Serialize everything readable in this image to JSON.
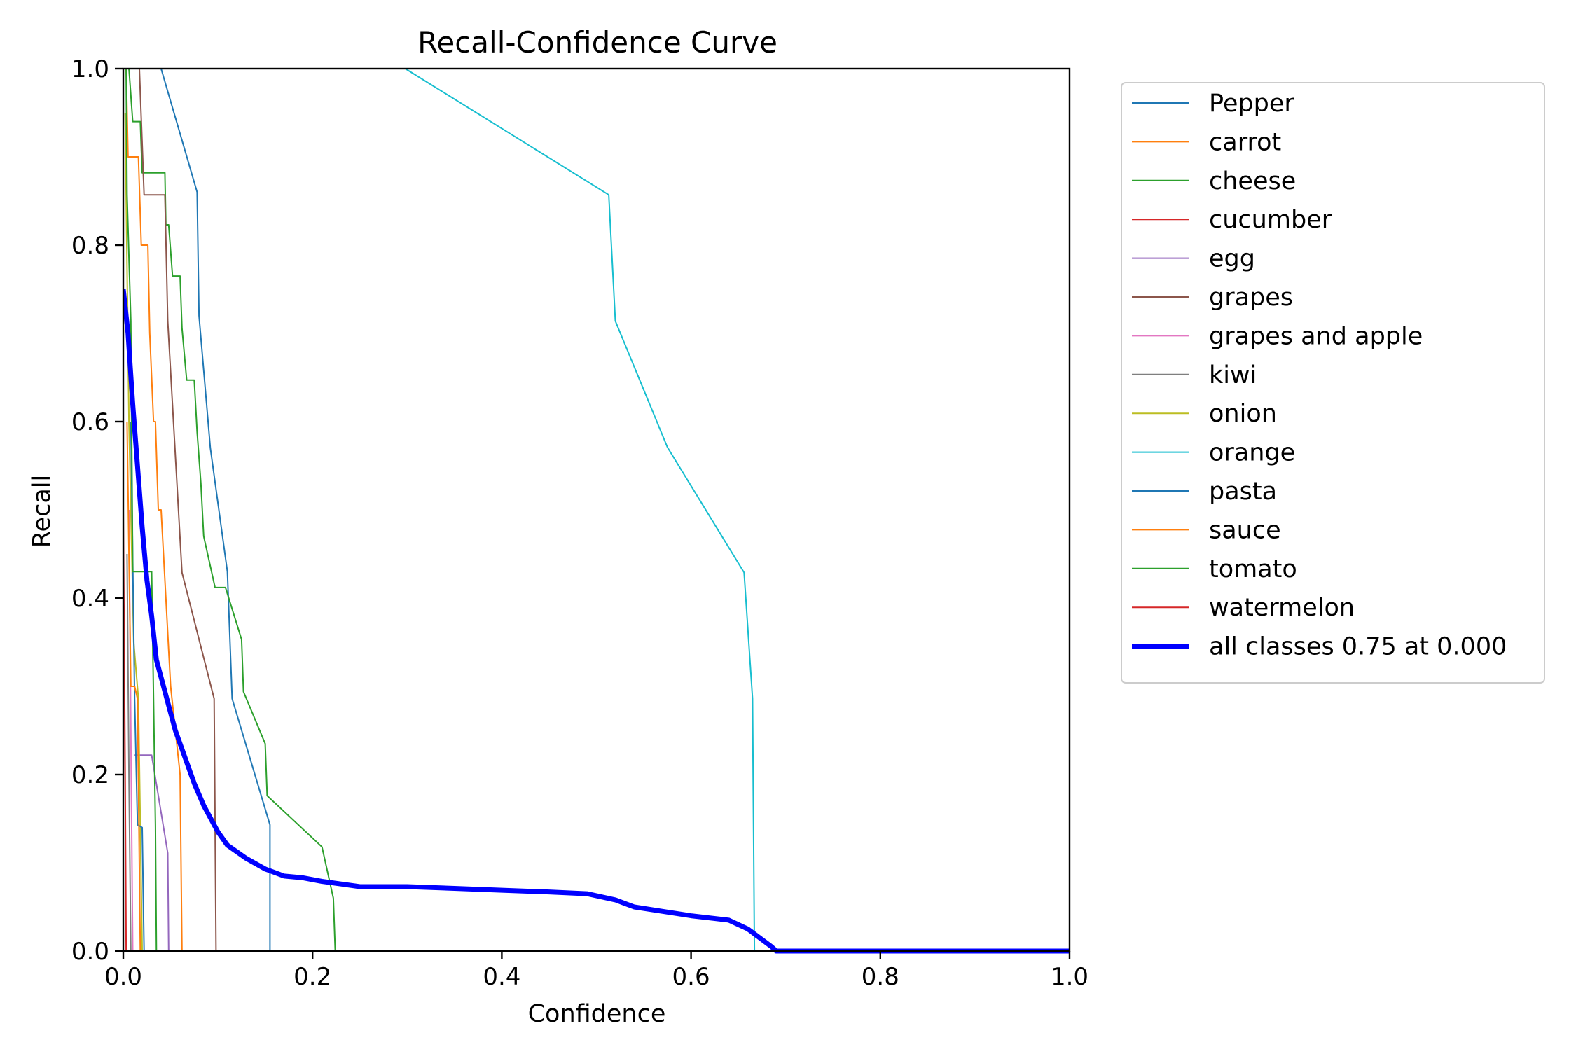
{
  "chart_data": {
    "type": "line",
    "title": "Recall-Confidence Curve",
    "xlabel": "Confidence",
    "ylabel": "Recall",
    "xlim": [
      0,
      1
    ],
    "ylim": [
      0,
      1
    ],
    "xticks": [
      "0.0",
      "0.2",
      "0.4",
      "0.6",
      "0.8",
      "1.0"
    ],
    "yticks": [
      "0.0",
      "0.2",
      "0.4",
      "0.6",
      "0.8",
      "1.0"
    ],
    "grid": false,
    "legend_position": "outside-right-top",
    "series": [
      {
        "name": "Pepper",
        "color": "#1f77b4",
        "width": 2,
        "points": [
          [
            0.04,
            1.0
          ],
          [
            0.078,
            0.86
          ],
          [
            0.08,
            0.72
          ],
          [
            0.092,
            0.57
          ],
          [
            0.11,
            0.43
          ],
          [
            0.115,
            0.286
          ],
          [
            0.155,
            0.143
          ],
          [
            0.155,
            0.0
          ]
        ]
      },
      {
        "name": "carrot",
        "color": "#ff7f0e",
        "width": 2,
        "points": [
          [
            0.003,
            1.0
          ],
          [
            0.005,
            0.9
          ],
          [
            0.016,
            0.9
          ],
          [
            0.019,
            0.8
          ],
          [
            0.026,
            0.8
          ],
          [
            0.028,
            0.7
          ],
          [
            0.032,
            0.6
          ],
          [
            0.034,
            0.6
          ],
          [
            0.037,
            0.5
          ],
          [
            0.04,
            0.5
          ],
          [
            0.045,
            0.4
          ],
          [
            0.05,
            0.3
          ],
          [
            0.06,
            0.2
          ],
          [
            0.062,
            0.0
          ]
        ]
      },
      {
        "name": "cheese",
        "color": "#2ca02c",
        "width": 2,
        "points": [
          [
            0.006,
            1.0
          ],
          [
            0.01,
            0.94
          ],
          [
            0.018,
            0.94
          ],
          [
            0.02,
            0.882
          ],
          [
            0.044,
            0.882
          ],
          [
            0.045,
            0.823
          ],
          [
            0.048,
            0.823
          ],
          [
            0.052,
            0.765
          ],
          [
            0.06,
            0.765
          ],
          [
            0.062,
            0.706
          ],
          [
            0.067,
            0.647
          ],
          [
            0.075,
            0.647
          ],
          [
            0.078,
            0.588
          ],
          [
            0.082,
            0.53
          ],
          [
            0.085,
            0.47
          ],
          [
            0.097,
            0.412
          ],
          [
            0.108,
            0.412
          ],
          [
            0.125,
            0.353
          ],
          [
            0.127,
            0.294
          ],
          [
            0.15,
            0.235
          ],
          [
            0.152,
            0.176
          ],
          [
            0.21,
            0.118
          ],
          [
            0.222,
            0.06
          ],
          [
            0.224,
            0.0
          ]
        ]
      },
      {
        "name": "cucumber",
        "color": "#d62728",
        "width": 2,
        "points": [
          [
            0.0,
            0.0
          ],
          [
            1.0,
            0.0
          ]
        ]
      },
      {
        "name": "egg",
        "color": "#9467bd",
        "width": 2,
        "points": [
          [
            0.012,
            0.222
          ],
          [
            0.03,
            0.222
          ],
          [
            0.047,
            0.111
          ],
          [
            0.048,
            0.0
          ]
        ]
      },
      {
        "name": "grapes",
        "color": "#8c564b",
        "width": 2,
        "points": [
          [
            0.017,
            1.0
          ],
          [
            0.022,
            0.857
          ],
          [
            0.044,
            0.857
          ],
          [
            0.047,
            0.714
          ],
          [
            0.062,
            0.429
          ],
          [
            0.096,
            0.286
          ],
          [
            0.098,
            0.0
          ]
        ]
      },
      {
        "name": "grapes and apple",
        "color": "#e377c2",
        "width": 2,
        "points": [
          [
            0.006,
            0.5
          ],
          [
            0.008,
            0.25
          ],
          [
            0.01,
            0.0
          ]
        ]
      },
      {
        "name": "kiwi",
        "color": "#7f7f7f",
        "width": 2,
        "points": [
          [
            0.004,
            0.45
          ],
          [
            0.006,
            0.2
          ],
          [
            0.008,
            0.0
          ]
        ]
      },
      {
        "name": "onion",
        "color": "#bcbd22",
        "width": 2,
        "points": [
          [
            0.002,
            0.95
          ],
          [
            0.006,
            0.6
          ],
          [
            0.011,
            0.35
          ],
          [
            0.016,
            0.286
          ],
          [
            0.018,
            0.143
          ],
          [
            0.02,
            0.0
          ]
        ]
      },
      {
        "name": "orange",
        "color": "#17becf",
        "width": 2,
        "points": [
          [
            0.298,
            1.0
          ],
          [
            0.513,
            0.857
          ],
          [
            0.52,
            0.714
          ],
          [
            0.575,
            0.571
          ],
          [
            0.656,
            0.429
          ],
          [
            0.665,
            0.286
          ],
          [
            0.667,
            0.0
          ]
        ]
      },
      {
        "name": "pasta",
        "color": "#1f77b4",
        "width": 2,
        "points": [
          [
            0.008,
            0.6
          ],
          [
            0.012,
            0.286
          ],
          [
            0.015,
            0.143
          ],
          [
            0.02,
            0.14
          ],
          [
            0.022,
            0.0
          ]
        ]
      },
      {
        "name": "sauce",
        "color": "#ff7f0e",
        "width": 2,
        "points": [
          [
            0.004,
            0.6
          ],
          [
            0.008,
            0.3
          ],
          [
            0.012,
            0.3
          ],
          [
            0.015,
            0.286
          ],
          [
            0.018,
            0.0
          ]
        ]
      },
      {
        "name": "tomato",
        "color": "#2ca02c",
        "width": 2,
        "points": [
          [
            0.003,
            1.0
          ],
          [
            0.004,
            0.857
          ],
          [
            0.008,
            0.714
          ],
          [
            0.01,
            0.43
          ],
          [
            0.02,
            0.43
          ],
          [
            0.03,
            0.43
          ],
          [
            0.032,
            0.286
          ],
          [
            0.034,
            0.143
          ],
          [
            0.035,
            0.0
          ]
        ]
      },
      {
        "name": "watermelon",
        "color": "#d62728",
        "width": 2,
        "points": [
          [
            0.0,
            0.5
          ],
          [
            0.002,
            0.2
          ],
          [
            0.003,
            0.0
          ],
          [
            1.0,
            0.0
          ]
        ]
      },
      {
        "name": "all classes 0.75 at 0.000",
        "color": "#0000ff",
        "width": 7,
        "points": [
          [
            0.0,
            0.75
          ],
          [
            0.005,
            0.7
          ],
          [
            0.01,
            0.62
          ],
          [
            0.015,
            0.55
          ],
          [
            0.02,
            0.48
          ],
          [
            0.025,
            0.42
          ],
          [
            0.03,
            0.38
          ],
          [
            0.035,
            0.33
          ],
          [
            0.045,
            0.29
          ],
          [
            0.055,
            0.25
          ],
          [
            0.065,
            0.22
          ],
          [
            0.075,
            0.19
          ],
          [
            0.085,
            0.165
          ],
          [
            0.1,
            0.135
          ],
          [
            0.11,
            0.12
          ],
          [
            0.13,
            0.105
          ],
          [
            0.15,
            0.093
          ],
          [
            0.17,
            0.085
          ],
          [
            0.19,
            0.083
          ],
          [
            0.21,
            0.079
          ],
          [
            0.23,
            0.076
          ],
          [
            0.25,
            0.073
          ],
          [
            0.3,
            0.073
          ],
          [
            0.35,
            0.071
          ],
          [
            0.4,
            0.069
          ],
          [
            0.45,
            0.067
          ],
          [
            0.49,
            0.065
          ],
          [
            0.52,
            0.058
          ],
          [
            0.54,
            0.05
          ],
          [
            0.57,
            0.045
          ],
          [
            0.6,
            0.04
          ],
          [
            0.64,
            0.035
          ],
          [
            0.66,
            0.025
          ],
          [
            0.685,
            0.005
          ],
          [
            0.69,
            0.0
          ],
          [
            1.0,
            0.0
          ]
        ]
      }
    ]
  }
}
